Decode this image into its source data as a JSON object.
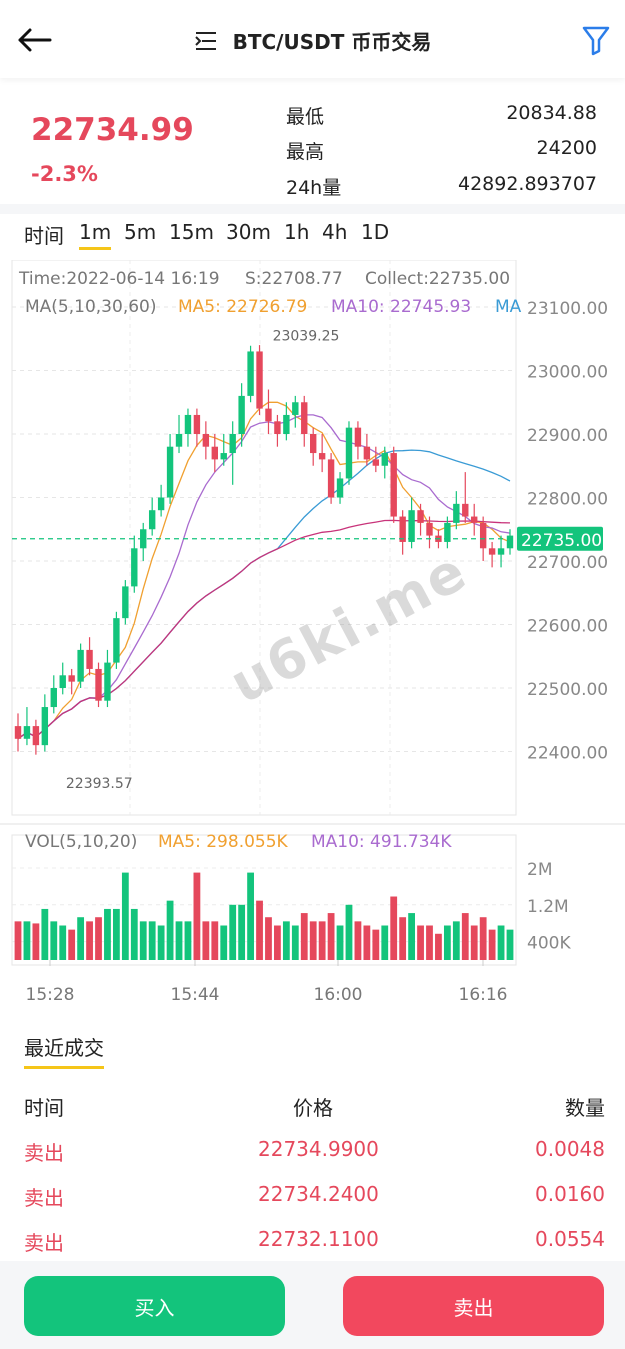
{
  "header": {
    "title": "BTC/USDT 币币交易",
    "back_icon": "back-arrow-icon",
    "menu_icon": "list-icon",
    "filter_icon": "filter-icon"
  },
  "ticker": {
    "price": "22734.99",
    "change": "-2.3%",
    "low_label": "最低",
    "low_value": "20834.88",
    "high_label": "最高",
    "high_value": "24200",
    "vol_label": "24h量",
    "vol_value": "42892.893707"
  },
  "tabs": [
    "时间",
    "1m",
    "5m",
    "15m",
    "30m",
    "1h",
    "4h",
    "1D"
  ],
  "active_tab": "1m",
  "chart_data": {
    "type": "candlestick",
    "info": {
      "time": "Time:2022-06-14 16:19",
      "s": "S:22708.77",
      "collect": "Collect:22735.00"
    },
    "ma_legend": {
      "label": "MA(5,10,30,60)",
      "ma5": "MA5: 22726.79",
      "ma10": "MA10: 22745.93",
      "ma30_partial": "MA"
    },
    "y_ticks": [
      "23100.00",
      "23000.00",
      "22900.00",
      "22800.00",
      "22700.00",
      "22600.00",
      "22500.00",
      "22400.00"
    ],
    "y_tick_values": [
      23100,
      23000,
      22900,
      22800,
      22700,
      22600,
      22500,
      22400
    ],
    "current_price_tag": "22735.00",
    "current_price": 22735,
    "max_label": "23039.25",
    "min_label": "22393.57",
    "candles": [
      [
        22440,
        22420,
        22460,
        22400
      ],
      [
        22420,
        22440,
        22470,
        22410
      ],
      [
        22440,
        22410,
        22450,
        22395
      ],
      [
        22410,
        22470,
        22490,
        22400
      ],
      [
        22470,
        22500,
        22520,
        22460
      ],
      [
        22500,
        22520,
        22540,
        22490
      ],
      [
        22520,
        22510,
        22530,
        22490
      ],
      [
        22510,
        22560,
        22570,
        22500
      ],
      [
        22560,
        22530,
        22580,
        22520
      ],
      [
        22530,
        22480,
        22540,
        22470
      ],
      [
        22480,
        22540,
        22560,
        22470
      ],
      [
        22540,
        22610,
        22620,
        22530
      ],
      [
        22610,
        22660,
        22670,
        22600
      ],
      [
        22660,
        22720,
        22740,
        22650
      ],
      [
        22720,
        22750,
        22760,
        22700
      ],
      [
        22750,
        22780,
        22800,
        22740
      ],
      [
        22780,
        22800,
        22820,
        22770
      ],
      [
        22800,
        22880,
        22900,
        22790
      ],
      [
        22880,
        22900,
        22930,
        22870
      ],
      [
        22900,
        22930,
        22940,
        22880
      ],
      [
        22930,
        22900,
        22940,
        22880
      ],
      [
        22900,
        22880,
        22920,
        22860
      ],
      [
        22880,
        22860,
        22900,
        22840
      ],
      [
        22860,
        22870,
        22900,
        22850
      ],
      [
        22870,
        22900,
        22920,
        22820
      ],
      [
        22900,
        22960,
        22980,
        22880
      ],
      [
        22960,
        23030,
        23039,
        22950
      ],
      [
        23030,
        22940,
        23040,
        22930
      ],
      [
        22940,
        22920,
        22970,
        22900
      ],
      [
        22920,
        22900,
        22930,
        22880
      ],
      [
        22900,
        22930,
        22950,
        22890
      ],
      [
        22930,
        22950,
        22960,
        22910
      ],
      [
        22950,
        22900,
        22960,
        22880
      ],
      [
        22900,
        22870,
        22910,
        22850
      ],
      [
        22870,
        22860,
        22900,
        22840
      ],
      [
        22860,
        22800,
        22870,
        22790
      ],
      [
        22800,
        22830,
        22840,
        22790
      ],
      [
        22830,
        22910,
        22920,
        22820
      ],
      [
        22910,
        22880,
        22920,
        22860
      ],
      [
        22880,
        22860,
        22900,
        22850
      ],
      [
        22860,
        22850,
        22880,
        22840
      ],
      [
        22850,
        22870,
        22880,
        22830
      ],
      [
        22870,
        22770,
        22880,
        22760
      ],
      [
        22770,
        22730,
        22780,
        22710
      ],
      [
        22730,
        22780,
        22800,
        22720
      ],
      [
        22780,
        22760,
        22790,
        22740
      ],
      [
        22760,
        22740,
        22770,
        22720
      ],
      [
        22740,
        22730,
        22750,
        22720
      ],
      [
        22730,
        22760,
        22770,
        22720
      ],
      [
        22760,
        22790,
        22810,
        22750
      ],
      [
        22790,
        22770,
        22840,
        22760
      ],
      [
        22770,
        22760,
        22790,
        22740
      ],
      [
        22760,
        22720,
        22770,
        22700
      ],
      [
        22720,
        22710,
        22730,
        22690
      ],
      [
        22710,
        22720,
        22740,
        22690
      ],
      [
        22720,
        22740,
        22750,
        22710
      ]
    ],
    "vol_legend": {
      "label": "VOL(5,10,20)",
      "ma5": "MA5: 298.055K",
      "ma10": "MA10: 491.734K"
    },
    "vol_ticks": [
      "2M",
      "1.2M",
      "400K"
    ],
    "vol_tick_values": [
      2000000,
      1200000,
      400000
    ],
    "x_ticks": [
      "15:28",
      "15:44",
      "16:00",
      "16:16"
    ]
  },
  "trades": {
    "title": "最近成交",
    "headers": {
      "time": "时间",
      "price": "价格",
      "amount": "数量"
    },
    "rows": [
      {
        "side": "卖出",
        "price": "22734.9900",
        "amount": "0.0048"
      },
      {
        "side": "卖出",
        "price": "22734.2400",
        "amount": "0.0160"
      },
      {
        "side": "卖出",
        "price": "22732.1100",
        "amount": "0.0554"
      }
    ]
  },
  "actions": {
    "buy": "买入",
    "sell": "卖出"
  },
  "watermark": "u6ki.me",
  "colors": {
    "up": "#13c47c",
    "down": "#e5485c",
    "accent": "#f5c518",
    "ma5": "#f0a030",
    "ma10": "#a96bcf",
    "ma30": "#3a9bd5",
    "ma60": "#c8337a"
  }
}
